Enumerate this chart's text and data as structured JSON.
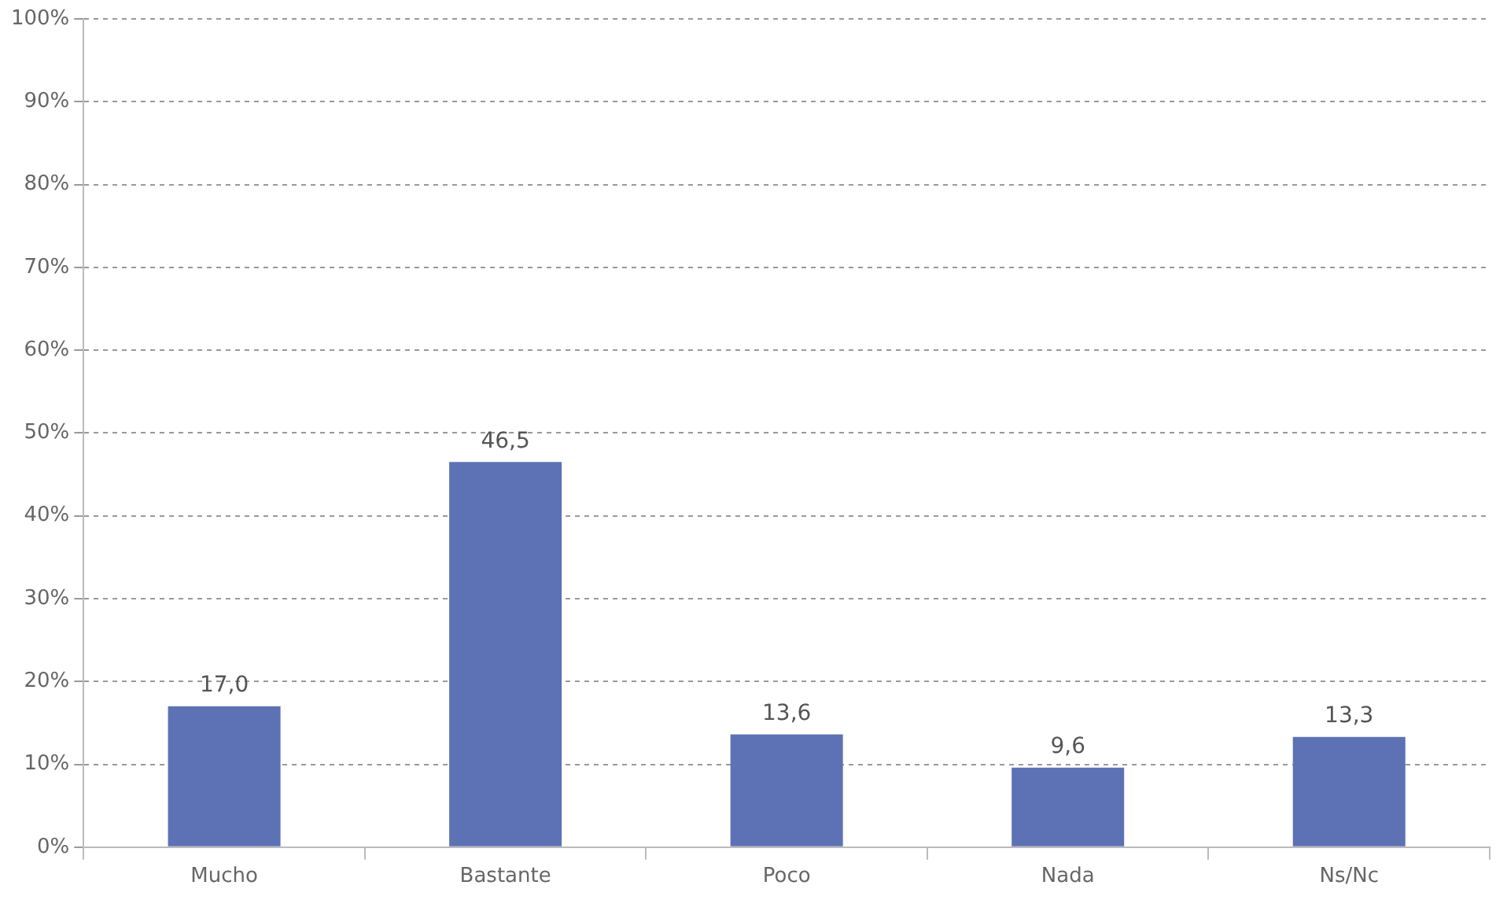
{
  "chart_data": {
    "type": "bar",
    "categories": [
      "Mucho",
      "Bastante",
      "Poco",
      "Nada",
      "Ns/Nc"
    ],
    "values": [
      17.0,
      46.5,
      13.6,
      9.6,
      13.3
    ],
    "value_labels": [
      "17,0",
      "46,5",
      "13,6",
      "9,6",
      "13,3"
    ],
    "color": "#5d72b4",
    "ylim": [
      0,
      100
    ],
    "yticks": [
      {
        "value": 0,
        "label": "0%"
      },
      {
        "value": 10,
        "label": "10%"
      },
      {
        "value": 20,
        "label": "20%"
      },
      {
        "value": 30,
        "label": "30%"
      },
      {
        "value": 40,
        "label": "40%"
      },
      {
        "value": 50,
        "label": "50%"
      },
      {
        "value": 60,
        "label": "60%"
      },
      {
        "value": 70,
        "label": "70%"
      },
      {
        "value": 80,
        "label": "80%"
      },
      {
        "value": 90,
        "label": "90%"
      },
      {
        "value": 100,
        "label": "100%"
      }
    ],
    "grid": "y",
    "legend": false
  }
}
